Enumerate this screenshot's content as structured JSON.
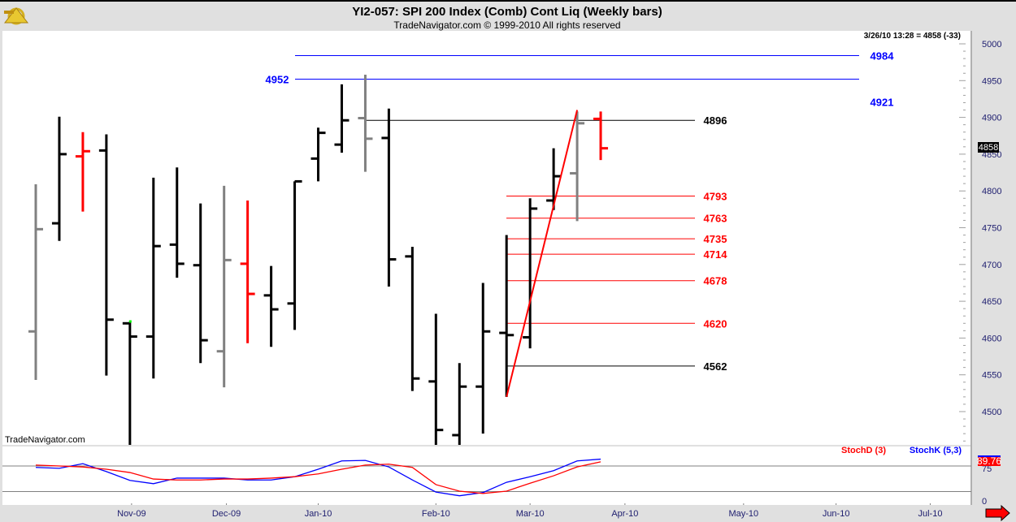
{
  "header": {
    "title": "YI2-057:  SPI 200 Index (Comb) Cont Liq  (Weekly bars)",
    "subtitle": "TradeNavigator.com © 1999-2010 All rights reserved",
    "quote": "3/26/10 13:28 = 4858 (-33)",
    "watermark": "TradeNavigator.com",
    "logo_icon": "sextant-icon"
  },
  "colors": {
    "up": "#000000",
    "down": "#ff0000",
    "neutral": "#808080",
    "blue": "#0000ff",
    "red": "#ff0000",
    "axis_text": "#202070"
  },
  "last_price_tag": "4858",
  "stoch_last_tag": "89.76",
  "stoch_legend": {
    "d": "StochD (3)",
    "k": "StochK (5,3)"
  },
  "chart_data": {
    "type": "ohlc",
    "title": "YI2-057:  SPI 200 Index (Comb) Cont Liq  (Weekly bars)",
    "ylim": [
      4450,
      5010
    ],
    "yticks": [
      "4500",
      "4550",
      "4600",
      "4650",
      "4700",
      "4750",
      "4800",
      "4850",
      "4900",
      "4950",
      "5000"
    ],
    "xticks": [
      "Nov-09",
      "Dec-09",
      "Jan-10",
      "Feb-10",
      "Mar-10",
      "Apr-10",
      "May-10",
      "Jun-10",
      "Jul-10"
    ],
    "bars": [
      {
        "o": 4609,
        "h": 4809,
        "l": 4543,
        "c": 4748,
        "color": "neutral"
      },
      {
        "o": 4756,
        "h": 4901,
        "l": 4732,
        "c": 4850,
        "color": "up"
      },
      {
        "o": 4847,
        "h": 4880,
        "l": 4772,
        "c": 4854,
        "color": "down"
      },
      {
        "o": 4855,
        "h": 4877,
        "l": 4549,
        "c": 4625,
        "color": "up"
      },
      {
        "o": 4620,
        "h": 4622,
        "l": 4440,
        "c": 4602,
        "color": "up"
      },
      {
        "o": 4602,
        "h": 4818,
        "l": 4545,
        "c": 4725,
        "color": "up"
      },
      {
        "o": 4727,
        "h": 4832,
        "l": 4682,
        "c": 4701,
        "color": "up"
      },
      {
        "o": 4699,
        "h": 4783,
        "l": 4566,
        "c": 4597,
        "color": "up"
      },
      {
        "o": 4582,
        "h": 4807,
        "l": 4533,
        "c": 4706,
        "color": "neutral"
      },
      {
        "o": 4701,
        "h": 4787,
        "l": 4593,
        "c": 4660,
        "color": "down"
      },
      {
        "o": 4658,
        "h": 4698,
        "l": 4588,
        "c": 4639,
        "color": "up"
      },
      {
        "o": 4647,
        "h": 4813,
        "l": 4611,
        "c": 4813,
        "color": "up"
      },
      {
        "o": 4844,
        "h": 4886,
        "l": 4813,
        "c": 4879,
        "color": "up"
      },
      {
        "o": 4863,
        "h": 4945,
        "l": 4852,
        "c": 4896,
        "color": "up"
      },
      {
        "o": 4899,
        "h": 4958,
        "l": 4826,
        "c": 4871,
        "color": "neutral"
      },
      {
        "o": 4872,
        "h": 4912,
        "l": 4670,
        "c": 4707,
        "color": "up"
      },
      {
        "o": 4711,
        "h": 4724,
        "l": 4528,
        "c": 4545,
        "color": "up"
      },
      {
        "o": 4541,
        "h": 4633,
        "l": 4440,
        "c": 4475,
        "color": "up"
      },
      {
        "o": 4468,
        "h": 4566,
        "l": 4445,
        "c": 4534,
        "color": "up"
      },
      {
        "o": 4534,
        "h": 4675,
        "l": 4470,
        "c": 4609,
        "color": "up"
      },
      {
        "o": 4607,
        "h": 4740,
        "l": 4520,
        "c": 4604,
        "color": "up"
      },
      {
        "o": 4601,
        "h": 4790,
        "l": 4586,
        "c": 4776,
        "color": "up"
      },
      {
        "o": 4787,
        "h": 4858,
        "l": 4774,
        "c": 4820,
        "color": "up"
      },
      {
        "o": 4824,
        "h": 4908,
        "l": 4759,
        "c": 4892,
        "color": "neutral"
      },
      {
        "o": 4898,
        "h": 4908,
        "l": 4842,
        "c": 4858,
        "color": "down"
      }
    ],
    "levels": [
      {
        "price": 4984,
        "label": "4984",
        "color": "#0000ff",
        "kind": "blue-top"
      },
      {
        "price": 4952,
        "label": "4952",
        "color": "#0000ff",
        "kind": "blue-left"
      },
      {
        "price": 4921,
        "label": "4921",
        "color": "#0000ff",
        "kind": "label-only"
      },
      {
        "price": 4896,
        "label": "4896",
        "color": "#000000",
        "kind": "black"
      },
      {
        "price": 4793,
        "label": "4793",
        "color": "#ff0000",
        "kind": "red"
      },
      {
        "price": 4763,
        "label": "4763",
        "color": "#ff0000",
        "kind": "red"
      },
      {
        "price": 4735,
        "label": "4735",
        "color": "#ff0000",
        "kind": "red"
      },
      {
        "price": 4714,
        "label": "4714",
        "color": "#ff0000",
        "kind": "red"
      },
      {
        "price": 4678,
        "label": "4678",
        "color": "#ff0000",
        "kind": "red"
      },
      {
        "price": 4620,
        "label": "4620",
        "color": "#ff0000",
        "kind": "red"
      },
      {
        "price": 4562,
        "label": "4562",
        "color": "#000000",
        "kind": "black-low"
      }
    ],
    "trendline": {
      "from": {
        "bar": 20,
        "price": 4520
      },
      "to": {
        "bar": 23,
        "price": 4910
      }
    },
    "stochastic": {
      "yticks": [
        "75",
        "0"
      ],
      "d": [
        77,
        75,
        73,
        68,
        61,
        47,
        45,
        45,
        47,
        47,
        49,
        52,
        58,
        68,
        77,
        79,
        72,
        35,
        21,
        16,
        21,
        38,
        54,
        73,
        84
      ],
      "k": [
        72,
        70,
        80,
        63,
        44,
        37,
        49,
        49,
        49,
        45,
        45,
        52,
        68,
        86,
        87,
        73,
        45,
        19,
        11,
        18,
        40,
        52,
        65,
        86,
        89.76
      ]
    }
  }
}
